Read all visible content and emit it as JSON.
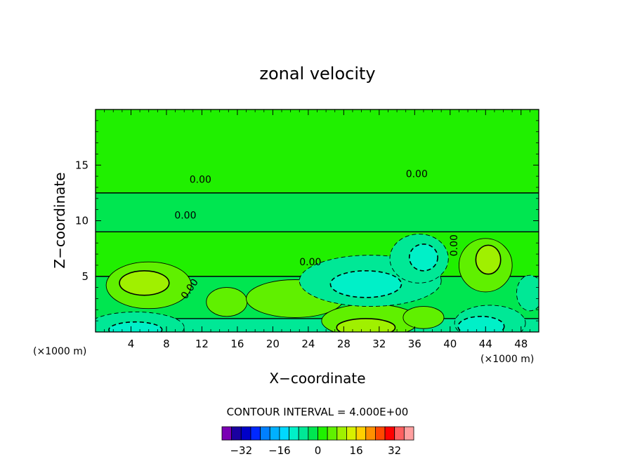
{
  "chart_data": {
    "type": "heatmap",
    "title": "zonal velocity",
    "xlabel": "X−coordinate",
    "ylabel": "Z−coordinate",
    "x_unit_left": "(×1000 m)",
    "x_unit_right": "(×1000 m)",
    "xlim": [
      0,
      50
    ],
    "ylim": [
      0,
      20
    ],
    "xticks": [
      4,
      8,
      12,
      16,
      20,
      24,
      28,
      32,
      36,
      40,
      44,
      48
    ],
    "yticks": [
      5,
      10,
      15
    ],
    "grid": false,
    "contour_interval_label": "CONTOUR INTERVAL = 4.000E+00",
    "contour_labels": [
      "0.00",
      "0.00",
      "0.00",
      "0.00",
      "0.00",
      "0.00"
    ],
    "colorbar": {
      "ticks": [
        -32,
        -16,
        0,
        16,
        32
      ],
      "levels": [
        -36,
        -32,
        -28,
        -24,
        -20,
        -16,
        -12,
        -8,
        -4,
        0,
        4,
        8,
        12,
        16,
        20,
        24,
        28,
        32,
        36
      ],
      "colors": [
        "#7a00b4",
        "#1a00a0",
        "#0000c8",
        "#0028ff",
        "#0080ff",
        "#00b0ff",
        "#00d8ff",
        "#00f0c8",
        "#00e896",
        "#00e650",
        "#20f000",
        "#60f000",
        "#a0f000",
        "#d8f000",
        "#ffd000",
        "#ff9000",
        "#ff4800",
        "#ff0000",
        "#ff6060",
        "#ffa0a0"
      ]
    },
    "fields": [
      {
        "x": 0,
        "z": 0,
        "w": 50,
        "h": 20,
        "value": 2
      },
      {
        "x": 0,
        "z": 0,
        "w": 50,
        "h": 12.5,
        "value": -2
      },
      {
        "x": 0,
        "z": 0,
        "w": 50,
        "h": 9,
        "value": 2
      },
      {
        "x": 0,
        "z": 0,
        "w": 50,
        "h": 5,
        "value": -2
      },
      {
        "x": 0,
        "z": 0,
        "w": 50,
        "h": 1.2,
        "value": -6
      }
    ],
    "features": [
      {
        "x": 6,
        "z": 4.2,
        "rx": 4.8,
        "ry": 2.1,
        "value": 6
      },
      {
        "x": 5.5,
        "z": 4.4,
        "rx": 2.8,
        "ry": 1.1,
        "value": 10
      },
      {
        "x": 4.5,
        "z": 0.4,
        "rx": 5.5,
        "ry": 1.4,
        "value": -6
      },
      {
        "x": 4.5,
        "z": 0.2,
        "rx": 3.0,
        "ry": 0.7,
        "value": -10
      },
      {
        "x": 14.8,
        "z": 2.7,
        "rx": 2.3,
        "ry": 1.3,
        "value": 6
      },
      {
        "x": 22.5,
        "z": 3.0,
        "rx": 5.5,
        "ry": 1.7,
        "value": 6
      },
      {
        "x": 31.0,
        "z": 1.0,
        "rx": 5.5,
        "ry": 1.5,
        "value": 6
      },
      {
        "x": 30.5,
        "z": 0.4,
        "rx": 3.3,
        "ry": 0.8,
        "value": 10
      },
      {
        "x": 37.0,
        "z": 1.3,
        "rx": 2.3,
        "ry": 1.0,
        "value": 6
      },
      {
        "x": 31.0,
        "z": 4.6,
        "rx": 8.0,
        "ry": 2.3,
        "value": -6
      },
      {
        "x": 30.5,
        "z": 4.3,
        "rx": 4.0,
        "ry": 1.2,
        "value": -10
      },
      {
        "x": 36.5,
        "z": 6.6,
        "rx": 3.3,
        "ry": 2.2,
        "value": -6
      },
      {
        "x": 37.0,
        "z": 6.7,
        "rx": 1.6,
        "ry": 1.2,
        "value": -10
      },
      {
        "x": 44.0,
        "z": 6.0,
        "rx": 3.0,
        "ry": 2.4,
        "value": 6
      },
      {
        "x": 44.3,
        "z": 6.5,
        "rx": 1.4,
        "ry": 1.3,
        "value": 10
      },
      {
        "x": 44.5,
        "z": 0.8,
        "rx": 4.0,
        "ry": 1.6,
        "value": -6
      },
      {
        "x": 43.5,
        "z": 0.5,
        "rx": 2.6,
        "ry": 0.9,
        "value": -10
      },
      {
        "x": 49.0,
        "z": 3.5,
        "rx": 1.5,
        "ry": 1.6,
        "value": -6
      }
    ]
  }
}
